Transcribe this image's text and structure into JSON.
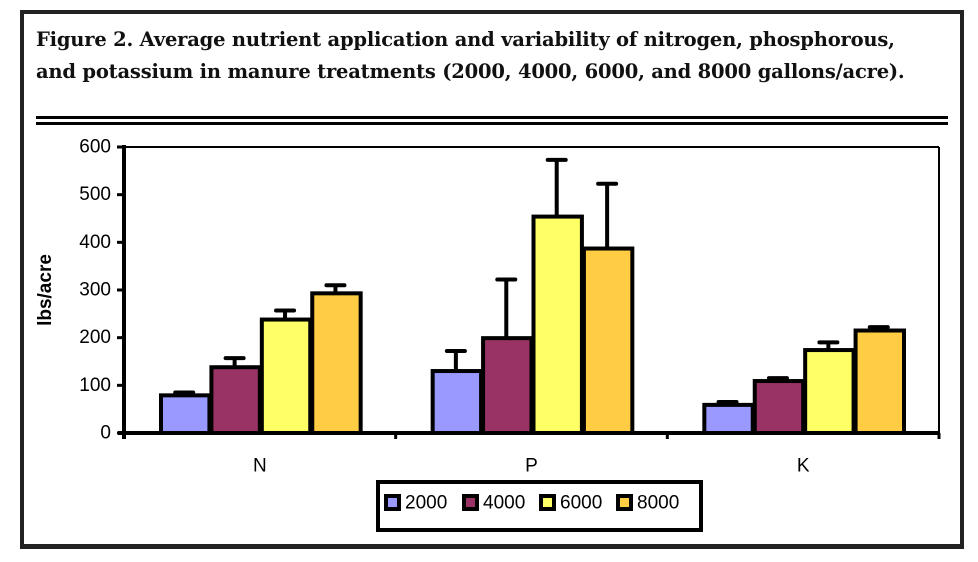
{
  "figure": {
    "title": "Figure 2. Average nutrient application and variability of nitrogen, phosphorous, and potassium in manure treatments (2000, 4000, 6000, and 8000 gallons/acre)."
  },
  "chart_data": {
    "type": "bar",
    "title": "Figure 2. Average nutrient application and variability of nitrogen, phosphorous, and potassium in manure treatments (2000, 4000, 6000, and 8000 gallons/acre).",
    "xlabel": "",
    "ylabel": "lbs/acre",
    "ylim": [
      0,
      600
    ],
    "yticks": [
      0,
      100,
      200,
      300,
      400,
      500,
      600
    ],
    "categories": [
      "N",
      "P",
      "K"
    ],
    "grid": false,
    "legend_position": "bottom",
    "error_bars": "upper only",
    "series": [
      {
        "name": "2000",
        "color": "#9999FF",
        "values": [
          79,
          130,
          59
        ],
        "error_upper": [
          85,
          172,
          65
        ]
      },
      {
        "name": "4000",
        "color": "#993366",
        "values": [
          138,
          199,
          109
        ],
        "error_upper": [
          157,
          322,
          115
        ]
      },
      {
        "name": "6000",
        "color": "#FFFF66",
        "values": [
          238,
          454,
          174
        ],
        "error_upper": [
          257,
          573,
          190
        ]
      },
      {
        "name": "8000",
        "color": "#FFCC44",
        "values": [
          293,
          387,
          215
        ],
        "error_upper": [
          310,
          523,
          222
        ]
      }
    ]
  }
}
